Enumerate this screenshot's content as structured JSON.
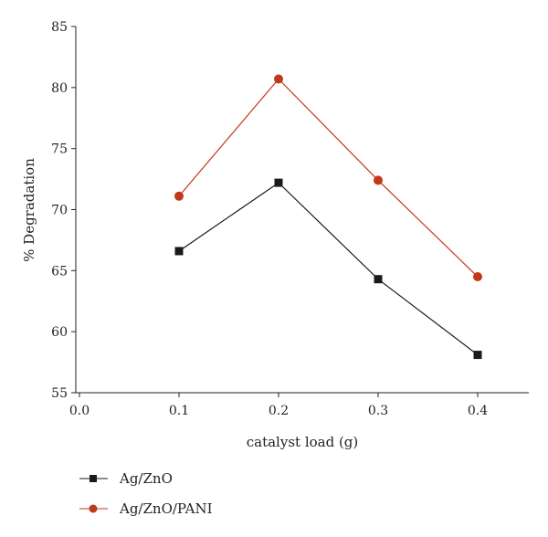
{
  "chart_data": {
    "type": "line",
    "xlabel": "catalyst load (g)",
    "ylabel": "% Degradation",
    "xlim": [
      0.0,
      0.45
    ],
    "ylim": [
      55,
      85
    ],
    "xticks": [
      0.0,
      0.1,
      0.2,
      0.3,
      0.4
    ],
    "xtick_labels": [
      "0.0",
      "0.1",
      "0.2",
      "0.3",
      "0.4"
    ],
    "yticks": [
      55,
      60,
      65,
      70,
      75,
      80,
      85
    ],
    "ytick_labels": [
      "55",
      "60",
      "65",
      "70",
      "75",
      "80",
      "85"
    ],
    "grid": false,
    "legend_position": "bottom-left",
    "x": [
      0.1,
      0.2,
      0.3,
      0.4
    ],
    "series": [
      {
        "name": "Ag/ZnO",
        "marker": "square",
        "color": "#1a1a1a",
        "values": [
          66.6,
          72.2,
          64.3,
          58.1
        ]
      },
      {
        "name": "Ag/ZnO/PANI",
        "marker": "circle",
        "color": "#c0391b",
        "values": [
          71.1,
          80.7,
          72.4,
          64.5
        ]
      }
    ]
  }
}
